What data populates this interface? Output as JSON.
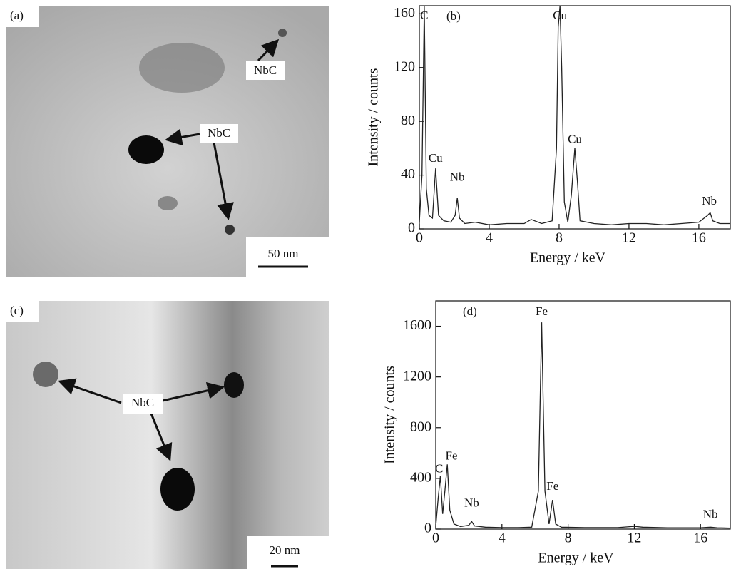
{
  "images": [
    {
      "label": "(a)",
      "annotations": [
        "NbC",
        "NbC"
      ],
      "scale_bar": "50 nm"
    },
    {
      "label": "(c)",
      "annotations": [
        "NbC"
      ],
      "scale_bar": "20 nm"
    }
  ],
  "chart_data": [
    {
      "type": "line",
      "panel_label": "(b)",
      "x_label": "Energy / keV",
      "y_label": "Intensity / counts",
      "xlim": [
        0,
        17.8
      ],
      "ylim": [
        0,
        166
      ],
      "xticks": [
        0,
        4,
        8,
        12,
        16
      ],
      "yticks": [
        0,
        40,
        80,
        120,
        160
      ],
      "color": "#222222",
      "x": [
        0,
        0.15,
        0.28,
        0.4,
        0.55,
        0.75,
        0.93,
        1.1,
        1.4,
        1.8,
        2.05,
        2.17,
        2.3,
        2.6,
        3.2,
        4,
        5,
        6,
        6.4,
        7,
        7.6,
        7.85,
        7.95,
        8.05,
        8.15,
        8.3,
        8.5,
        8.7,
        8.9,
        9.05,
        9.2,
        10,
        11,
        12,
        13,
        14,
        15,
        16,
        16.5,
        16.65,
        16.8,
        17.2,
        17.8
      ],
      "values": [
        5,
        40,
        166,
        30,
        10,
        8,
        45,
        10,
        6,
        5,
        10,
        23,
        8,
        4,
        5,
        3,
        4,
        4,
        7,
        4,
        6,
        60,
        150,
        166,
        120,
        20,
        5,
        25,
        60,
        35,
        6,
        4,
        3,
        4,
        4,
        3,
        4,
        5,
        10,
        12,
        6,
        4,
        4
      ],
      "annotations": [
        {
          "text": "C",
          "x": 0.28,
          "y": 158
        },
        {
          "text": "Cu",
          "x": 0.93,
          "y": 52
        },
        {
          "text": "Nb",
          "x": 2.17,
          "y": 38
        },
        {
          "text": "Cu",
          "x": 8.05,
          "y": 158
        },
        {
          "text": "Cu",
          "x": 8.9,
          "y": 66
        },
        {
          "text": "Nb",
          "x": 16.6,
          "y": 20
        }
      ]
    },
    {
      "type": "line",
      "panel_label": "(d)",
      "x_label": "Energy / keV",
      "y_label": "Intensity / counts",
      "xlim": [
        0,
        17.8
      ],
      "ylim": [
        0,
        1800
      ],
      "xticks": [
        0,
        4,
        8,
        12,
        16
      ],
      "yticks": [
        0,
        400,
        800,
        1200,
        1600
      ],
      "color": "#222222",
      "x": [
        0,
        0.15,
        0.28,
        0.42,
        0.55,
        0.7,
        0.85,
        1.1,
        1.5,
        2,
        2.17,
        2.35,
        3,
        4,
        5,
        5.8,
        6.2,
        6.4,
        6.6,
        6.85,
        7.06,
        7.25,
        7.6,
        9,
        11,
        12,
        12.5,
        14,
        16,
        16.6,
        17,
        17.8
      ],
      "values": [
        20,
        250,
        420,
        120,
        300,
        510,
        150,
        40,
        20,
        30,
        60,
        25,
        15,
        12,
        12,
        15,
        300,
        1630,
        300,
        40,
        230,
        40,
        15,
        12,
        12,
        22,
        15,
        10,
        10,
        15,
        10,
        8
      ],
      "annotations": [
        {
          "text": "C",
          "x": 0.2,
          "y": 470
        },
        {
          "text": "Fe",
          "x": 0.95,
          "y": 570
        },
        {
          "text": "Nb",
          "x": 2.17,
          "y": 200
        },
        {
          "text": "Fe",
          "x": 6.4,
          "y": 1710
        },
        {
          "text": "Fe",
          "x": 7.06,
          "y": 330
        },
        {
          "text": "Nb",
          "x": 16.6,
          "y": 110
        }
      ]
    }
  ]
}
